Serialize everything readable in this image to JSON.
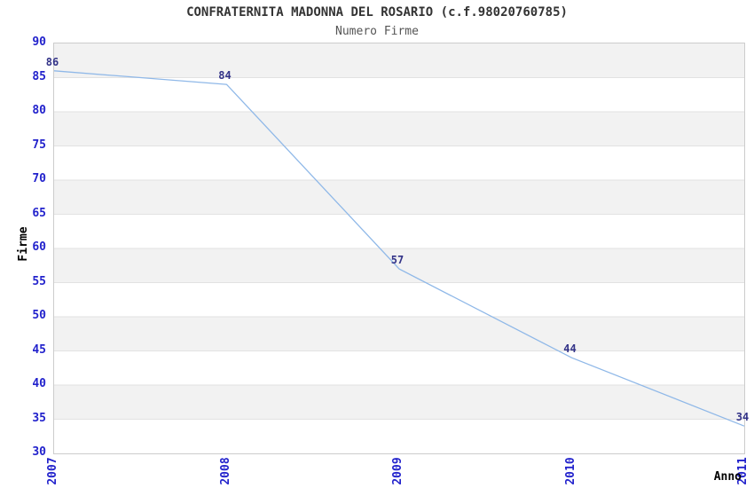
{
  "chart_data": {
    "type": "line",
    "title": "CONFRATERNITA MADONNA DEL ROSARIO (c.f.98020760785)",
    "subtitle": "Numero Firme",
    "xlabel": "Anno",
    "ylabel": "Firme",
    "categories": [
      "2007",
      "2008",
      "2009",
      "2010",
      "2011"
    ],
    "values": [
      86,
      84,
      57,
      44,
      34
    ],
    "ylim": [
      30,
      90
    ],
    "ytick_step": 5,
    "grid": "horizontal-bands-alternating",
    "legend": "none",
    "colors": {
      "line": "#8fb8e8",
      "tick_label": "#2222cc",
      "data_label": "#333388",
      "band_gray": "#f2f2f2",
      "gridline": "#e2e2e2",
      "plot_border": "#cccccc",
      "title": "#333333",
      "subtitle": "#555555",
      "axis_label": "#000000"
    }
  }
}
